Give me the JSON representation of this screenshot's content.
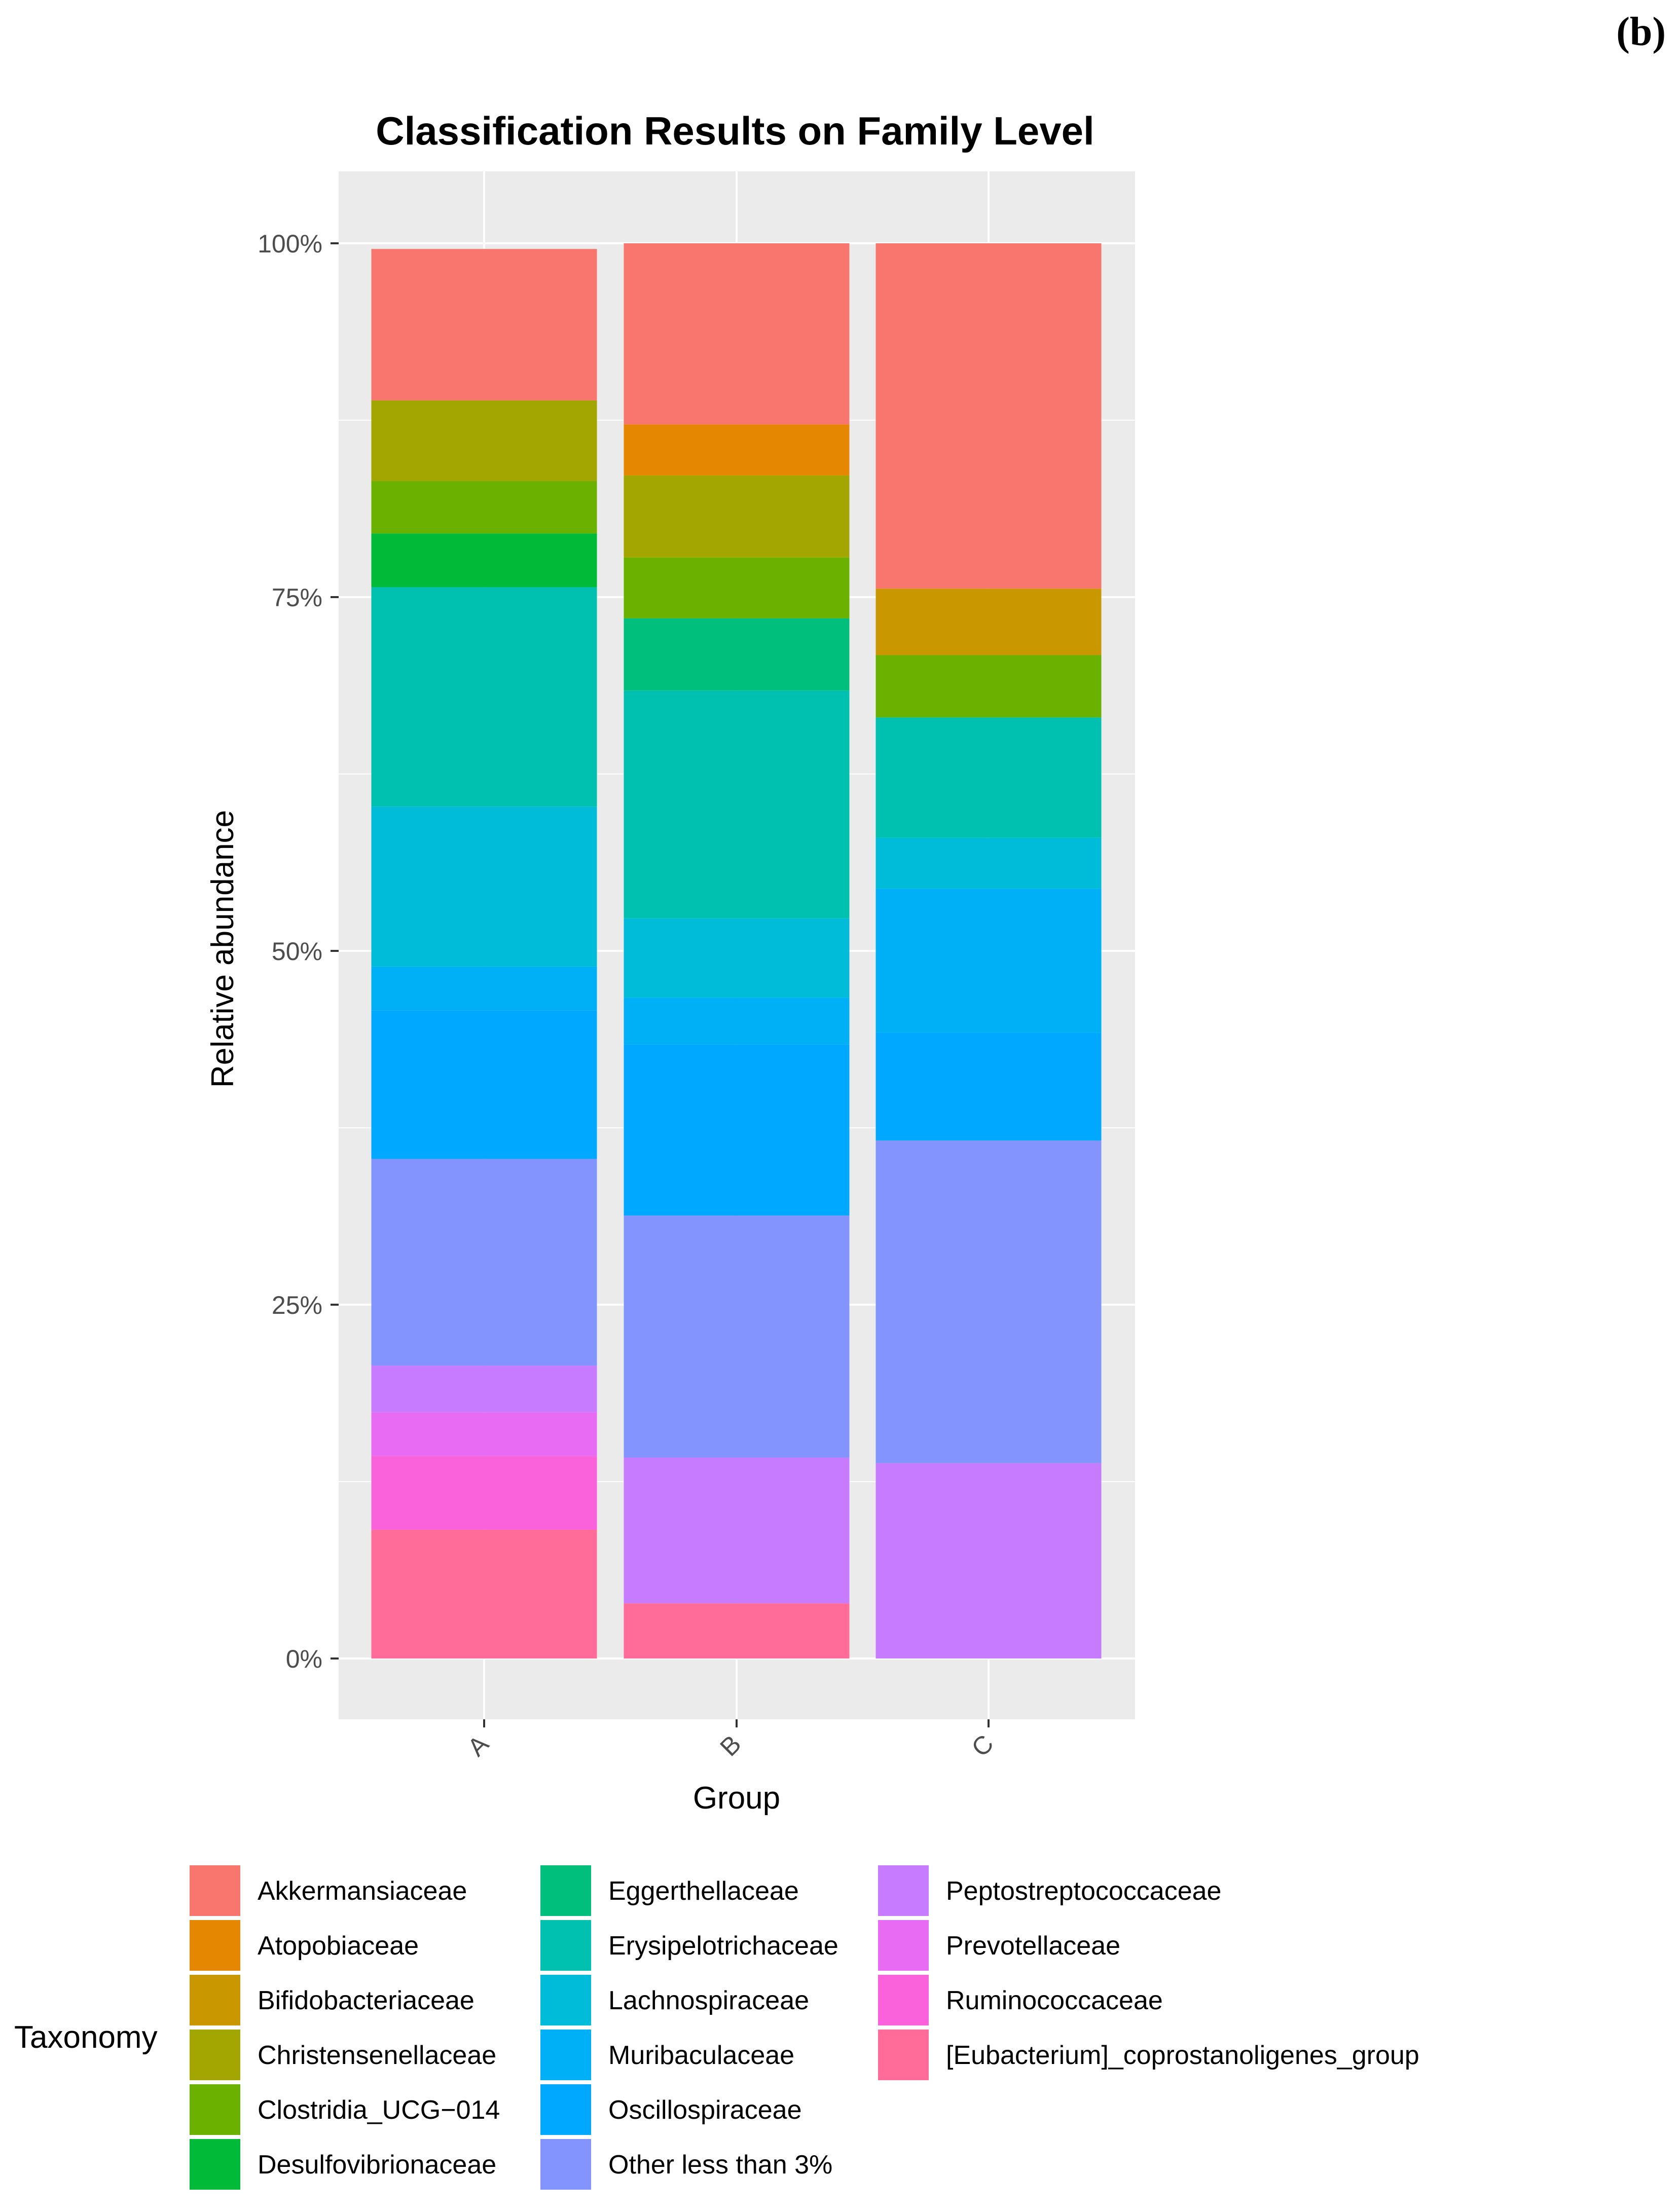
{
  "panel_label": "(b)",
  "colors": {
    "Akkermansiaceae": "#F8766D",
    "Atopobiaceae": "#E58700",
    "Bifidobacteriaceae": "#C99800",
    "Christensenellaceae": "#A3A500",
    "Clostridia_UCG−014": "#6BB100",
    "Desulfovibrionaceae": "#00BA38",
    "Eggerthellaceae": "#00BF7D",
    "Erysipelotrichaceae": "#00C0AF",
    "Lachnospiraceae": "#00BCD8",
    "Muribaculaceae": "#00B0F6",
    "Oscillospiraceae": "#00A9FF",
    "Other less than 3%": "#8394FF",
    "Peptostreptococcaceae": "#C77CFF",
    "Prevotellaceae": "#E76BF3",
    "Ruminococcaceae": "#FA62DB",
    "[Eubacterium]_coprostanoligenes_group": "#FF6C9A"
  },
  "chart_data": {
    "type": "bar",
    "stacked": true,
    "title": "Classification Results on Family Level",
    "xlabel": "Group",
    "ylabel": "Relative abundance",
    "ylim": [
      0,
      1
    ],
    "y_ticks": [
      "0%",
      "25%",
      "50%",
      "75%",
      "100%"
    ],
    "categories": [
      "A",
      "B",
      "C"
    ],
    "legend_title": "Taxonomy",
    "legend_position": "bottom",
    "grid": true,
    "series": [
      {
        "name": "[Eubacterium]_coprostanoligenes_group",
        "values": [
          0.091,
          0.039,
          0.0
        ]
      },
      {
        "name": "Ruminococcaceae",
        "values": [
          0.052,
          0.0,
          0.0
        ]
      },
      {
        "name": "Prevotellaceae",
        "values": [
          0.031,
          0.0,
          0.0
        ]
      },
      {
        "name": "Peptostreptococcaceae",
        "values": [
          0.033,
          0.103,
          0.138
        ]
      },
      {
        "name": "Other less than 3%",
        "values": [
          0.146,
          0.171,
          0.228
        ]
      },
      {
        "name": "Oscillospiraceae",
        "values": [
          0.105,
          0.121,
          0.076
        ]
      },
      {
        "name": "Muribaculaceae",
        "values": [
          0.031,
          0.033,
          0.102
        ]
      },
      {
        "name": "Lachnospiraceae",
        "values": [
          0.113,
          0.056,
          0.036
        ]
      },
      {
        "name": "Erysipelotrichaceae",
        "values": [
          0.155,
          0.161,
          0.085
        ]
      },
      {
        "name": "Eggerthellaceae",
        "values": [
          0.0,
          0.051,
          0.0
        ]
      },
      {
        "name": "Desulfovibrionaceae",
        "values": [
          0.038,
          0.0,
          0.0
        ]
      },
      {
        "name": "Clostridia_UCG−014",
        "values": [
          0.037,
          0.043,
          0.044
        ]
      },
      {
        "name": "Christensenellaceae",
        "values": [
          0.057,
          0.058,
          0.0
        ]
      },
      {
        "name": "Bifidobacteriaceae",
        "values": [
          0.0,
          0.0,
          0.047
        ]
      },
      {
        "name": "Atopobiaceae",
        "values": [
          0.0,
          0.036,
          0.0
        ]
      },
      {
        "name": "Akkermansiaceae",
        "values": [
          0.107,
          0.128,
          0.244
        ]
      }
    ],
    "legend_entries": [
      "Akkermansiaceae",
      "Atopobiaceae",
      "Bifidobacteriaceae",
      "Christensenellaceae",
      "Clostridia_UCG−014",
      "Desulfovibrionaceae",
      "Eggerthellaceae",
      "Erysipelotrichaceae",
      "Lachnospiraceae",
      "Muribaculaceae",
      "Oscillospiraceae",
      "Other less than 3%",
      "Peptostreptococcaceae",
      "Prevotellaceae",
      "Ruminococcaceae",
      "[Eubacterium]_coprostanoligenes_group"
    ]
  }
}
